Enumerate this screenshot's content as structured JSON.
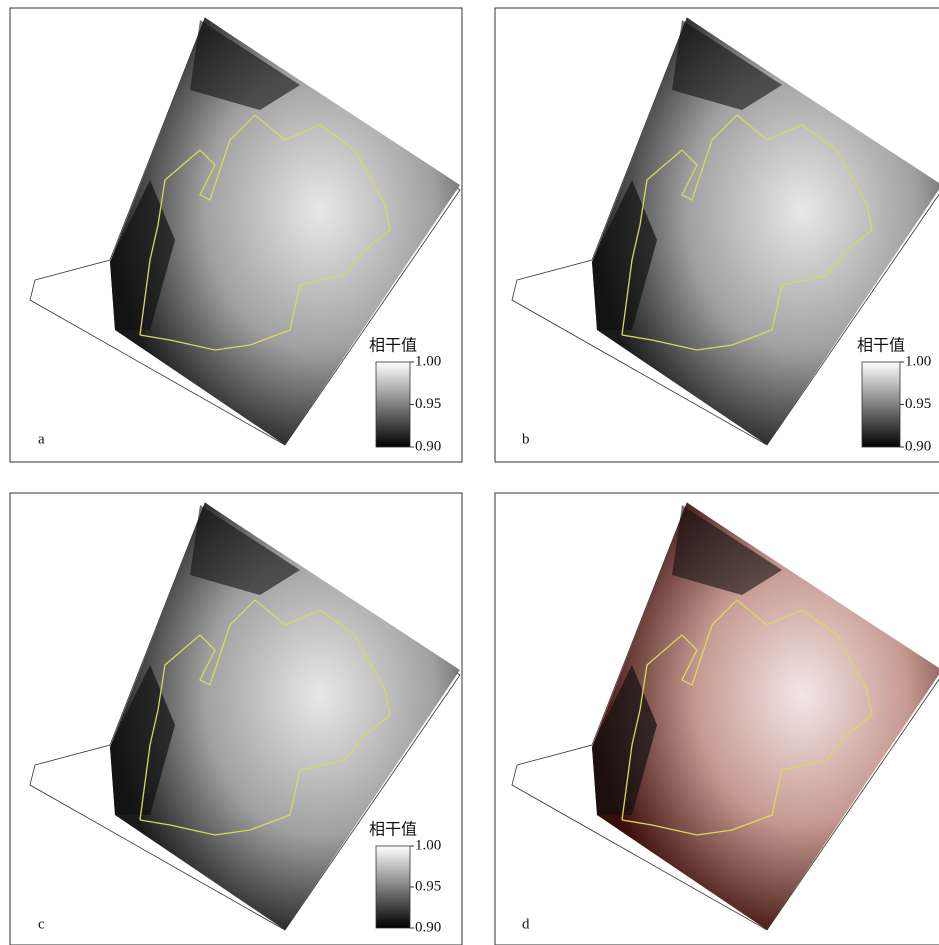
{
  "panels": [
    {
      "label": "a",
      "colorbar": {
        "title": "相干值",
        "range": [
          0.9,
          1
        ],
        "ticks": [
          {
            "value": 1,
            "label": "1.00"
          },
          {
            "value": 0.95,
            "label": "0.95"
          },
          {
            "value": 0.9,
            "label": "0.90"
          }
        ]
      }
    },
    {
      "label": "b",
      "colorbar": {
        "title": "相干值",
        "range": [
          0.9,
          1
        ],
        "ticks": [
          {
            "value": 1,
            "label": "1.00"
          },
          {
            "value": 0.95,
            "label": "0.95"
          },
          {
            "value": 0.9,
            "label": "0.90"
          }
        ]
      }
    },
    {
      "label": "c",
      "colorbar": {
        "title": "相干值",
        "range": [
          0.9,
          1
        ],
        "ticks": [
          {
            "value": 1,
            "label": "1.00"
          },
          {
            "value": 0.95,
            "label": "0.95"
          },
          {
            "value": 0.9,
            "label": "0.90"
          }
        ]
      }
    },
    {
      "label": "d"
    }
  ]
}
